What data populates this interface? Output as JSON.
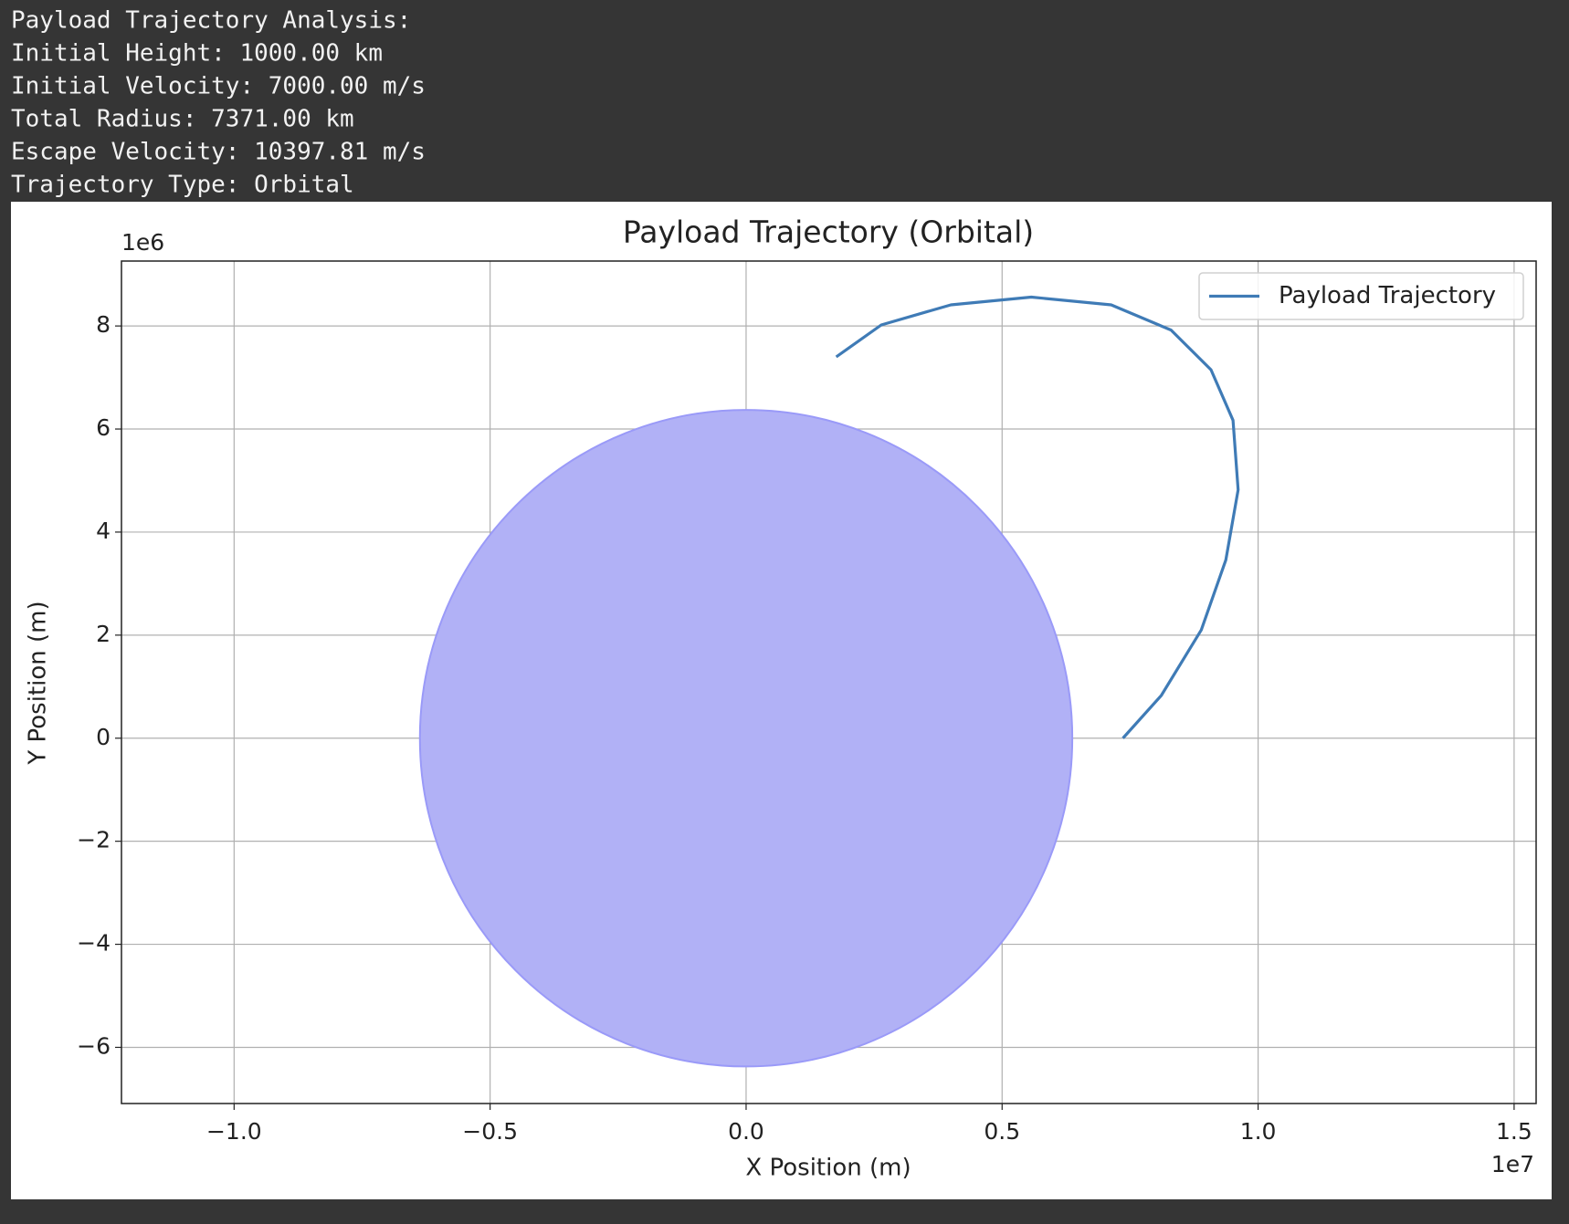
{
  "output": {
    "lines": [
      "Payload Trajectory Analysis:",
      "Initial Height: 1000.00 km",
      "Initial Velocity: 7000.00 m/s",
      "Total Radius: 7371.00 km",
      "Escape Velocity: 10397.81 m/s",
      "Trajectory Type: Orbital"
    ]
  },
  "chart_data": {
    "type": "line",
    "title": "Payload Trajectory (Orbital)",
    "x_label": "X Position (m)",
    "y_label": "Y Position (m)",
    "x_offset_label": "1e7",
    "y_offset_label": "1e6",
    "series": [
      {
        "name": "Payload Trajectory",
        "color": "#3f7bb6",
        "x": [
          7360000,
          8110000,
          8890000,
          9370000,
          9610000,
          9510000,
          9080000,
          8300000,
          7130000,
          5570000,
          4000000,
          2640000,
          1760000
        ],
        "values": [
          0,
          830000,
          2100000,
          3460000,
          4820000,
          6170000,
          7150000,
          7920000,
          8410000,
          8560000,
          8410000,
          8020000,
          7400000
        ]
      }
    ],
    "earth": {
      "center_x": 0,
      "center_y": 0,
      "radius": 6371000,
      "color": "#b1b1f6",
      "edge_color": "#9a9af8"
    },
    "xlim": [
      -12200000,
      15430000
    ],
    "ylim": [
      -7090000,
      9260000
    ],
    "xticks": [
      {
        "value": -10000000,
        "label": "−1.0"
      },
      {
        "value": -5000000,
        "label": "−0.5"
      },
      {
        "value": 0,
        "label": "0.0"
      },
      {
        "value": 5000000,
        "label": "0.5"
      },
      {
        "value": 10000000,
        "label": "1.0"
      },
      {
        "value": 15000000,
        "label": "1.5"
      }
    ],
    "yticks": [
      {
        "value": -6000000,
        "label": "−6"
      },
      {
        "value": -4000000,
        "label": "−4"
      },
      {
        "value": -2000000,
        "label": "−2"
      },
      {
        "value": 0,
        "label": "0"
      },
      {
        "value": 2000000,
        "label": "2"
      },
      {
        "value": 4000000,
        "label": "4"
      },
      {
        "value": 6000000,
        "label": "6"
      },
      {
        "value": 8000000,
        "label": "8"
      }
    ],
    "grid": true,
    "legend": "upper-right"
  }
}
